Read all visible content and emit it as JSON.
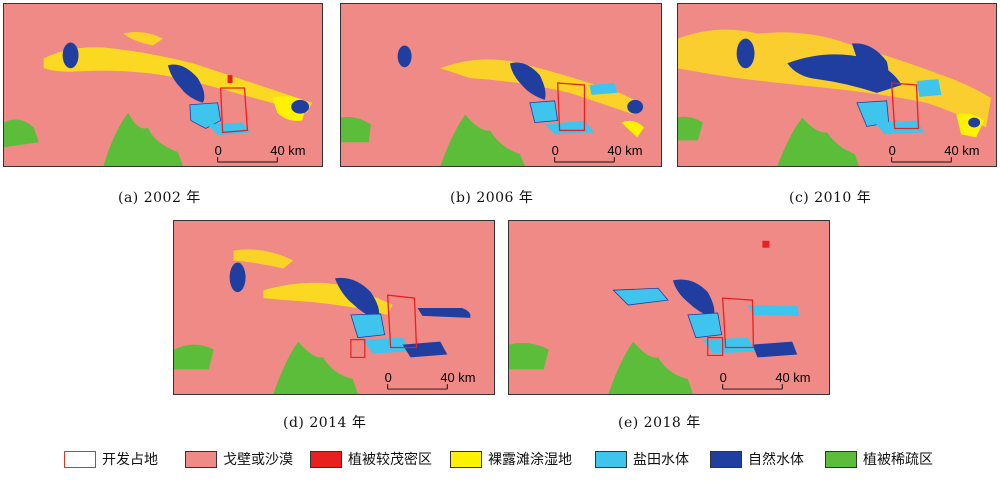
{
  "panels": [
    {
      "id": "a",
      "caption": "(a) 2002 年",
      "scale_zero": "0",
      "scale_end": "40 km"
    },
    {
      "id": "b",
      "caption": "(b) 2006 年",
      "scale_zero": "0",
      "scale_end": "40 km"
    },
    {
      "id": "c",
      "caption": "(c) 2010 年",
      "scale_zero": "0",
      "scale_end": "40 km"
    },
    {
      "id": "d",
      "caption": "(d) 2014 年",
      "scale_zero": "0",
      "scale_end": "40 km"
    },
    {
      "id": "e",
      "caption": "(e) 2018 年",
      "scale_zero": "0",
      "scale_end": "40 km"
    }
  ],
  "legend": [
    {
      "label": "开发占地",
      "color": "#ffffff",
      "border": "#d23a2a",
      "style": "outline"
    },
    {
      "label": "戈壁或沙漠",
      "color": "#f08a86",
      "style": "fill"
    },
    {
      "label": "植被较茂密区",
      "color": "#e8201f",
      "style": "fill"
    },
    {
      "label": "裸露滩涂湿地",
      "color": "#fff200",
      "style": "fill"
    },
    {
      "label": "盐田水体",
      "color": "#3fc4ee",
      "style": "fill"
    },
    {
      "label": "自然水体",
      "color": "#1f3ea0",
      "style": "fill"
    },
    {
      "label": "植被稀疏区",
      "color": "#5bbd3a",
      "style": "fill"
    }
  ]
}
